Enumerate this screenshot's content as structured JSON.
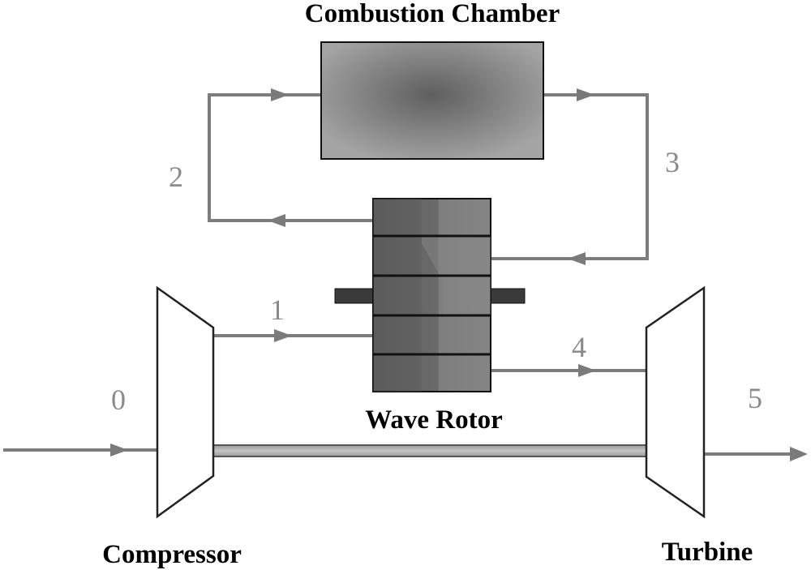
{
  "labels": {
    "combustion_chamber": "Combustion Chamber",
    "wave_rotor": "Wave Rotor",
    "compressor": "Compressor",
    "turbine": "Turbine"
  },
  "stations": [
    "0",
    "1",
    "2",
    "3",
    "4",
    "5"
  ],
  "colors": {
    "flow": "#7d7d7d",
    "station_text": "#8a8a8a",
    "chamber_fill": "#8c8c8c",
    "rotor_fill": "#6e6e6e",
    "outline": "#111111"
  }
}
